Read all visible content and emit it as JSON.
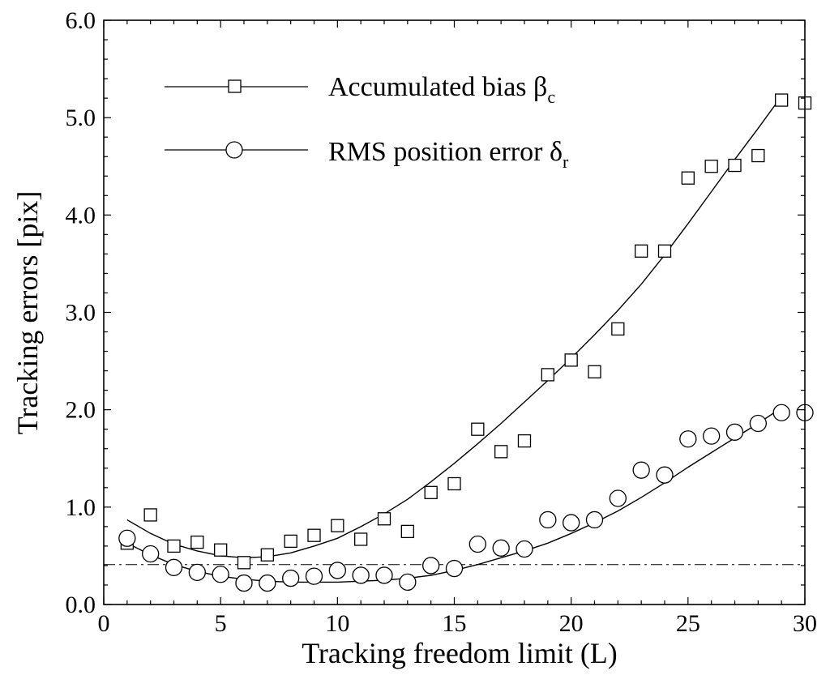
{
  "chart_data": {
    "type": "scatter",
    "title": "",
    "xlabel": "Tracking freedom limit (L)",
    "ylabel": "Tracking errors  [pix]",
    "xlim": [
      0,
      30
    ],
    "ylim": [
      0.0,
      6.0
    ],
    "x_ticks": [
      0,
      5,
      10,
      15,
      20,
      25,
      30
    ],
    "x_tick_labels": [
      "0",
      "5",
      "10",
      "15",
      "20",
      "25",
      "30"
    ],
    "y_ticks": [
      0.0,
      1.0,
      2.0,
      3.0,
      4.0,
      5.0,
      6.0
    ],
    "y_tick_labels": [
      "0.0",
      "1.0",
      "2.0",
      "3.0",
      "4.0",
      "5.0",
      "6.0"
    ],
    "grid": false,
    "legend_position": "top-left",
    "series": [
      {
        "name_text": "Accumulated bias β",
        "name_subscript": "c",
        "marker": "square",
        "x": [
          1,
          2,
          3,
          4,
          5,
          6,
          7,
          8,
          9,
          10,
          11,
          12,
          13,
          14,
          15,
          16,
          17,
          18,
          19,
          20,
          21,
          22,
          23,
          24,
          25,
          26,
          27,
          28,
          29,
          30
        ],
        "values": [
          0.63,
          0.92,
          0.6,
          0.64,
          0.56,
          0.43,
          0.51,
          0.65,
          0.71,
          0.81,
          0.67,
          0.88,
          0.75,
          1.15,
          1.24,
          1.8,
          1.57,
          1.68,
          2.36,
          2.51,
          2.39,
          2.83,
          3.63,
          3.63,
          4.38,
          4.5,
          4.51,
          4.61,
          5.18,
          5.15
        ],
        "fit_x": [
          1,
          2,
          3,
          4,
          5,
          6,
          7,
          8,
          9,
          10,
          11,
          12,
          13,
          14,
          15,
          16,
          17,
          18,
          19,
          20,
          21,
          22,
          23,
          24,
          25,
          26,
          27,
          28,
          29
        ],
        "fit": [
          0.87,
          0.73,
          0.62,
          0.55,
          0.5,
          0.48,
          0.49,
          0.53,
          0.6,
          0.68,
          0.8,
          0.93,
          1.08,
          1.26,
          1.45,
          1.65,
          1.86,
          2.08,
          2.3,
          2.53,
          2.77,
          3.02,
          3.29,
          3.59,
          3.91,
          4.24,
          4.57,
          4.89,
          5.22
        ]
      },
      {
        "name_text": "RMS position error δ",
        "name_subscript": "r",
        "marker": "circle",
        "x": [
          1,
          2,
          3,
          4,
          5,
          6,
          7,
          8,
          9,
          10,
          11,
          12,
          13,
          14,
          15,
          16,
          17,
          18,
          19,
          20,
          21,
          22,
          23,
          24,
          25,
          26,
          27,
          28,
          29,
          30
        ],
        "values": [
          0.68,
          0.52,
          0.38,
          0.33,
          0.31,
          0.22,
          0.22,
          0.27,
          0.29,
          0.35,
          0.3,
          0.3,
          0.23,
          0.4,
          0.37,
          0.62,
          0.58,
          0.57,
          0.87,
          0.84,
          0.87,
          1.09,
          1.38,
          1.33,
          1.7,
          1.73,
          1.77,
          1.86,
          1.97,
          1.97
        ],
        "fit_x": [
          1,
          2,
          3,
          4,
          5,
          6,
          7,
          8,
          9,
          10,
          11,
          12,
          13,
          14,
          15,
          16,
          17,
          18,
          19,
          20,
          21,
          22,
          23,
          24,
          25,
          26,
          27,
          28,
          29
        ],
        "fit": [
          0.63,
          0.51,
          0.41,
          0.34,
          0.29,
          0.26,
          0.24,
          0.23,
          0.23,
          0.23,
          0.24,
          0.25,
          0.27,
          0.3,
          0.35,
          0.41,
          0.48,
          0.55,
          0.63,
          0.73,
          0.84,
          0.96,
          1.1,
          1.25,
          1.41,
          1.56,
          1.71,
          1.86,
          2.02
        ]
      }
    ],
    "reference_line": {
      "y": 0.41,
      "style": "dash-dot"
    }
  }
}
